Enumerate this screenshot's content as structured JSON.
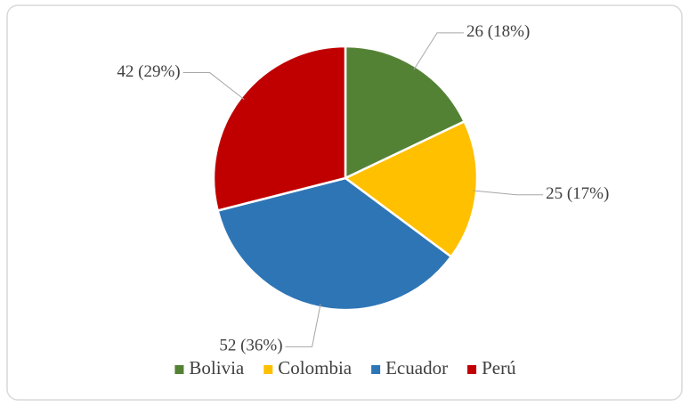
{
  "chart_data": {
    "type": "pie",
    "categories": [
      "Bolivia",
      "Colombia",
      "Ecuador",
      "Perú"
    ],
    "values": [
      26,
      25,
      52,
      42
    ],
    "value_labels": [
      "26 (18%)",
      "25 (17%)",
      "52 (36%)",
      "42 (29%)"
    ],
    "colors": [
      "#548235",
      "#ffc000",
      "#2e75b6",
      "#c00000"
    ],
    "legend": "bottom"
  }
}
